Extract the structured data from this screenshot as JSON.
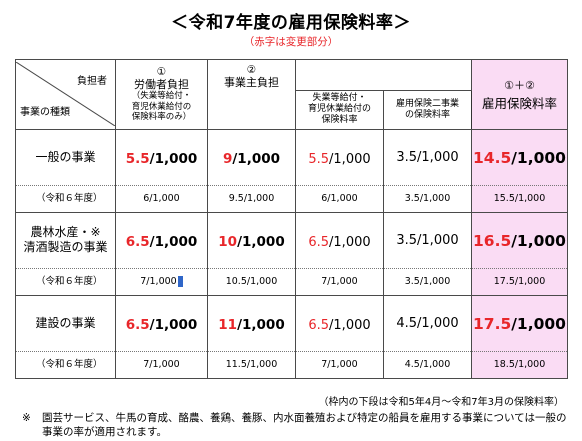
{
  "title": "＜令和7年度の雇用保険料率＞",
  "subtitle": "（赤字は変更部分）",
  "header": {
    "corner_top": "負担者",
    "corner_bottom": "事業の種類",
    "worker_num": "①",
    "worker_label": "労働者負担",
    "worker_note1": "（失業等給付・",
    "worker_note2": "育児休業給付の",
    "worker_note3": "保険料率のみ）",
    "employer_num": "②",
    "employer_label": "事業主負担",
    "employer_sub1_line1": "失業等給付・",
    "employer_sub1_line2": "育児休業給付の",
    "employer_sub1_line3": "保険料率",
    "employer_sub2_line1": "雇用保険二事業",
    "employer_sub2_line2": "の保険料率",
    "total_num": "①＋②",
    "total_label": "雇用保険料率"
  },
  "rows": [
    {
      "label_line1": "一般の事業",
      "label_line2": "",
      "worker_num": "5.5",
      "worker_den": "/1,000",
      "employer_num": "9",
      "employer_den": "/1,000",
      "sub1_num": "5.5",
      "sub1_den": "/1,000",
      "sub2": "3.5/1,000",
      "total_num": "14.5",
      "total_den": "/1,000",
      "prev_label": "（令和６年度）",
      "prev_worker": "6/1,000",
      "prev_employer": "9.5/1,000",
      "prev_sub1": "6/1,000",
      "prev_sub2": "3.5/1,000",
      "prev_total": "15.5/1,000"
    },
    {
      "label_line1": "農林水産・※",
      "label_line2": "清酒製造の事業",
      "worker_num": "6.5",
      "worker_den": "/1,000",
      "employer_num": "10",
      "employer_den": "/1,000",
      "sub1_num": "6.5",
      "sub1_den": "/1,000",
      "sub2": "3.5/1,000",
      "total_num": "16.5",
      "total_den": "/1,000",
      "prev_label": "（令和６年度）",
      "prev_worker": "7/1,000",
      "prev_employer": "10.5/1,000",
      "prev_sub1": "7/1,000",
      "prev_sub2": "3.5/1,000",
      "prev_total": "17.5/1,000"
    },
    {
      "label_line1": "建設の事業",
      "label_line2": "",
      "worker_num": "6.5",
      "worker_den": "/1,000",
      "employer_num": "11",
      "employer_den": "/1,000",
      "sub1_num": "6.5",
      "sub1_den": "/1,000",
      "sub2": "4.5/1,000",
      "total_num": "17.5",
      "total_den": "/1,000",
      "prev_label": "（令和６年度）",
      "prev_worker": "7/1,000",
      "prev_employer": "11.5/1,000",
      "prev_sub1": "7/1,000",
      "prev_sub2": "4.5/1,000",
      "prev_total": "18.5/1,000"
    }
  ],
  "footnote_period": "（枠内の下段は令和5年4月～令和7年3月の保険料率）",
  "footnote_mark": "※",
  "footnote_text": "園芸サービス、牛馬の育成、酪農、養鶏、養豚、内水面養殖および特定の船員を雇用する事業については一般の事業の率が適用されます。",
  "colors": {
    "accent_red": "#e8262a",
    "total_bg": "#fadcf4"
  }
}
